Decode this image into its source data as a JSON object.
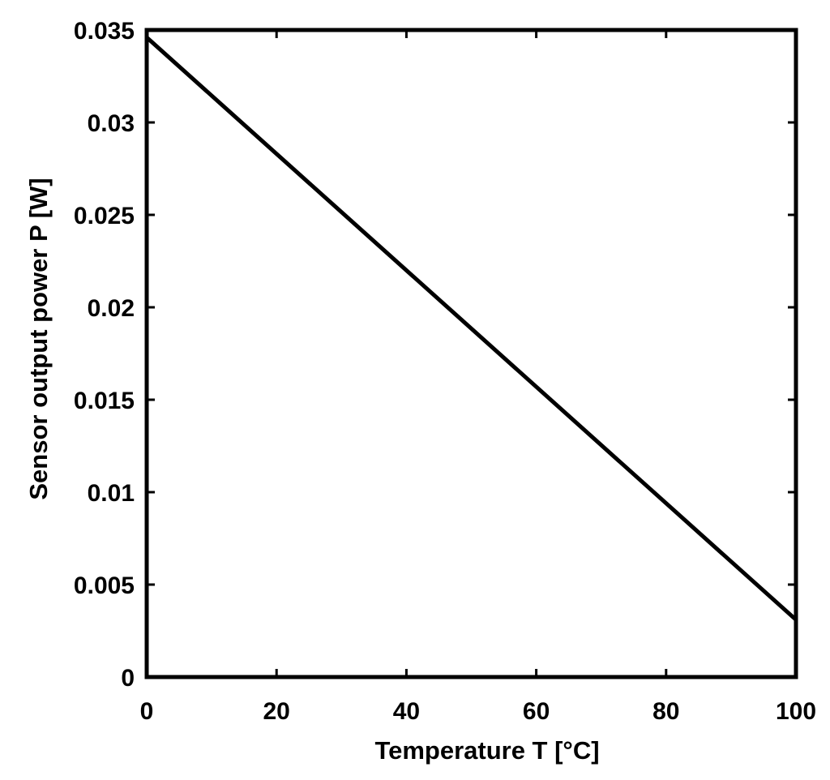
{
  "chart_data": {
    "type": "line",
    "title": "",
    "xlabel": "Temperature T [°C]",
    "ylabel": "Sensor output power P [W]",
    "xlim": [
      0,
      100
    ],
    "ylim": [
      0,
      0.035
    ],
    "xticks": [
      0,
      20,
      40,
      60,
      80,
      100
    ],
    "xtick_labels": [
      "0",
      "20",
      "40",
      "60",
      "80",
      "100"
    ],
    "yticks": [
      0,
      0.005,
      0.01,
      0.015,
      0.02,
      0.025,
      0.03,
      0.035
    ],
    "ytick_labels": [
      "0",
      "0.005",
      "0.01",
      "0.015",
      "0.02",
      "0.025",
      "0.03",
      "0.035"
    ],
    "grid": false,
    "legend": "none",
    "line_color": "#000000",
    "series": [
      {
        "x": [
          0,
          100
        ],
        "y": [
          0.0346,
          0.0031
        ]
      }
    ]
  }
}
